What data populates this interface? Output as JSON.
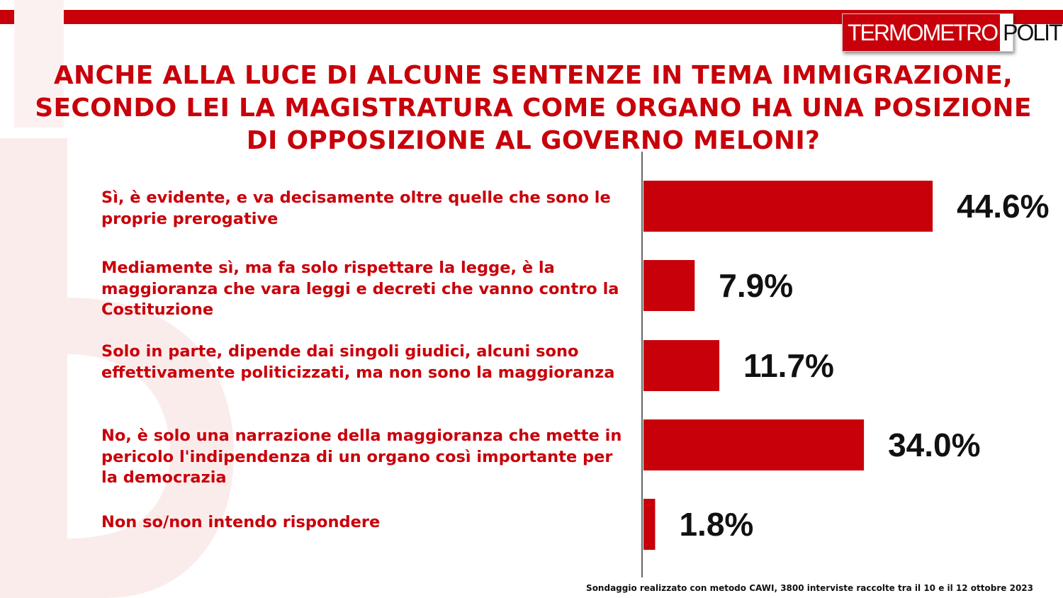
{
  "header": {
    "logo_left": "TERMOMETRO",
    "logo_right": "POLITICO"
  },
  "title_lines": [
    "ANCHE ALLA LUCE DI ALCUNE SENTENZE IN TEMA IMMIGRAZIONE,",
    "SECONDO LEI LA MAGISTRATURA COME ORGANO HA UNA POSIZIONE",
    "DI OPPOSIZIONE AL GOVERNO MELONI?"
  ],
  "colors": {
    "accent": "#c8000a",
    "value_text": "#111111"
  },
  "chart_data": {
    "type": "bar",
    "orientation": "horizontal",
    "title": "ANCHE ALLA LUCE DI ALCUNE SENTENZE IN TEMA IMMIGRAZIONE, SECONDO LEI LA MAGISTRATURA COME ORGANO HA UNA POSIZIONE DI OPPOSIZIONE AL GOVERNO MELONI?",
    "categories": [
      "Sì, è evidente, e va decisamente oltre quelle che sono le proprie prerogative",
      "Mediamente sì, ma fa solo rispettare la legge, è la maggioranza che vara leggi e decreti che vanno contro la Costituzione",
      "Solo in parte, dipende dai singoli giudici, alcuni sono effettivamente politicizzati, ma non sono la maggioranza",
      "No, è solo una narrazione della maggioranza che mette in pericolo l'indipendenza di un organo così importante per la democrazia",
      "Non so/non intendo rispondere"
    ],
    "values": [
      44.6,
      7.9,
      11.7,
      34.0,
      1.8
    ],
    "value_labels": [
      "44.6%",
      "7.9%",
      "11.7%",
      "34.0%",
      "1.8%"
    ],
    "unit": "%",
    "xlim": [
      0,
      55
    ],
    "grid": false,
    "legend": "none"
  },
  "footnote": "Sondaggio realizzato con metodo CAWI, 3800 interviste raccolte tra il 10 e il 12 ottobre 2023"
}
